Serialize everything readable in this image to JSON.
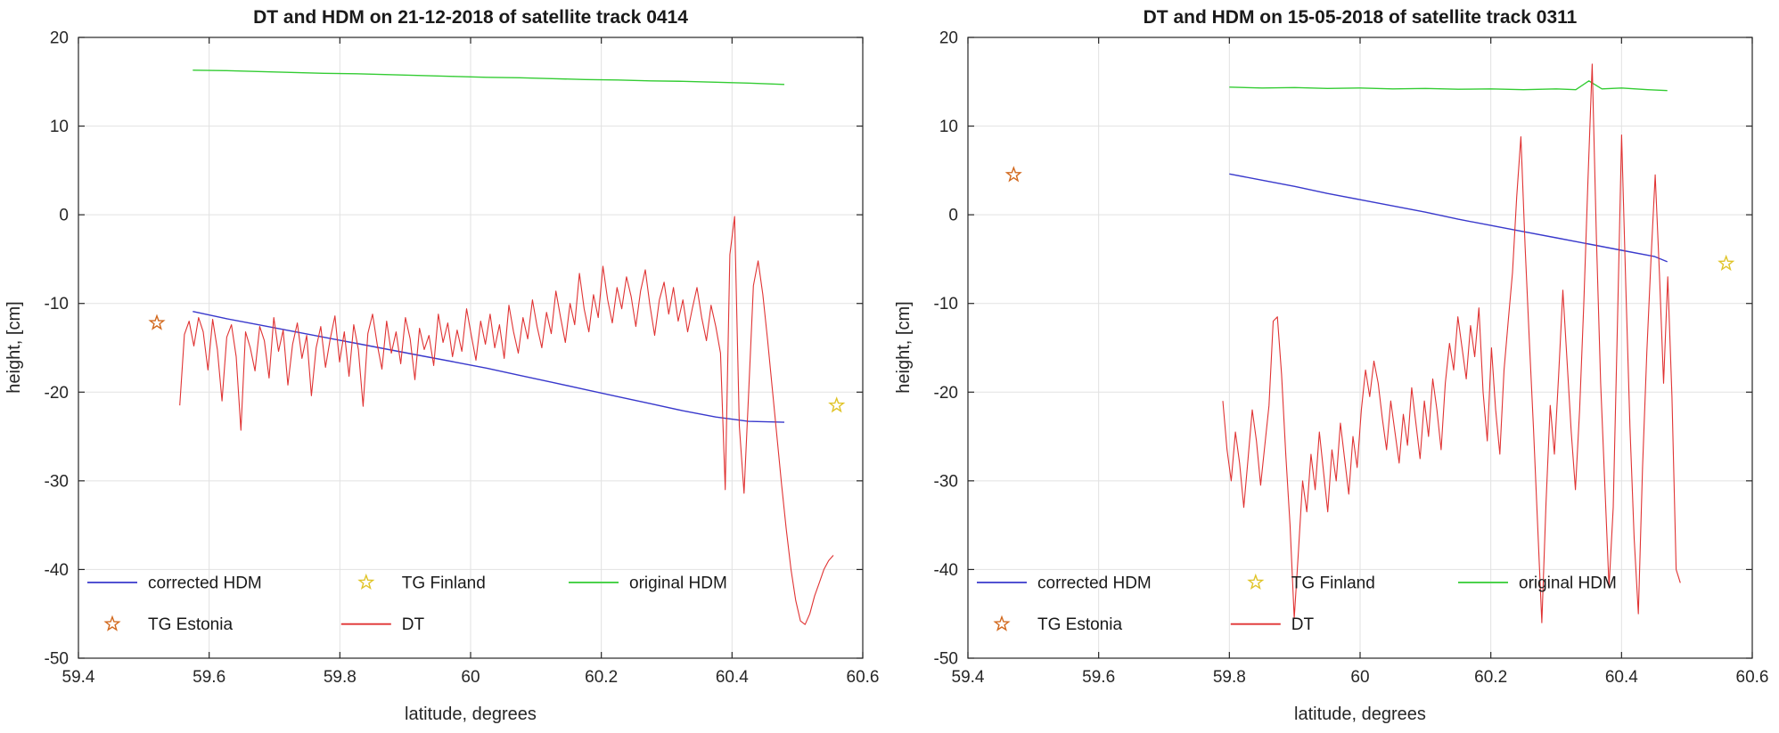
{
  "theme": {
    "background": "#ffffff",
    "axis_color": "#262626",
    "grid_color": "#e2e2e2",
    "text_color": "#262626"
  },
  "chart_data": [
    {
      "type": "line",
      "title": "DT and HDM on 21-12-2018 of satellite track 0414",
      "xlabel": "latitude, degrees",
      "ylabel": "height, [cm]",
      "xlim": [
        59.4,
        60.6
      ],
      "ylim": [
        -50,
        20
      ],
      "xticks": [
        "59.4",
        "59.6",
        "59.8",
        "60",
        "60.2",
        "60.4",
        "60.6"
      ],
      "xtick_values": [
        59.4,
        59.6,
        59.8,
        60,
        60.2,
        60.4,
        60.6
      ],
      "yticks": [
        "-50",
        "-40",
        "-30",
        "-20",
        "-10",
        "0",
        "10",
        "20"
      ],
      "ytick_values": [
        -50,
        -40,
        -30,
        -20,
        -10,
        0,
        10,
        20
      ],
      "grid": true,
      "legend": {
        "rows": 2,
        "cols": 3,
        "position": "inside-bottom-left",
        "items": [
          "corrected-hdm",
          "tg-estonia",
          "tg-finland",
          "dt",
          "original-hdm"
        ]
      },
      "series": [
        {
          "id": "original-hdm",
          "name": "original HDM",
          "kind": "line",
          "color": "#33cc33",
          "width": 1.4,
          "x": [
            59.575,
            59.625,
            59.675,
            59.725,
            59.775,
            59.825,
            59.875,
            59.925,
            59.975,
            60.025,
            60.075,
            60.125,
            60.175,
            60.225,
            60.275,
            60.325,
            60.375,
            60.425,
            60.48
          ],
          "y": [
            16.3,
            16.25,
            16.15,
            16.05,
            15.95,
            15.9,
            15.8,
            15.7,
            15.6,
            15.5,
            15.45,
            15.35,
            15.25,
            15.2,
            15.1,
            15.05,
            14.95,
            14.85,
            14.7
          ]
        },
        {
          "id": "corrected-hdm",
          "name": "corrected HDM",
          "kind": "line",
          "color": "#3939cc",
          "width": 1.4,
          "x": [
            59.575,
            59.625,
            59.675,
            59.725,
            59.775,
            59.825,
            59.875,
            59.925,
            59.975,
            60.025,
            60.075,
            60.125,
            60.175,
            60.225,
            60.275,
            60.325,
            60.375,
            60.425,
            60.48
          ],
          "y": [
            -10.9,
            -11.7,
            -12.4,
            -13.1,
            -13.8,
            -14.5,
            -15.2,
            -15.9,
            -16.6,
            -17.3,
            -18.1,
            -18.9,
            -19.7,
            -20.5,
            -21.3,
            -22.1,
            -22.8,
            -23.3,
            -23.4
          ]
        },
        {
          "id": "dt",
          "name": "DT",
          "kind": "line",
          "color": "#e03333",
          "width": 1.1,
          "x_start": 59.555,
          "x_end": 60.555,
          "y": [
            -21.5,
            -13.5,
            -12.0,
            -14.8,
            -11.6,
            -13.2,
            -17.5,
            -11.8,
            -15.2,
            -21.0,
            -13.8,
            -12.4,
            -16.0,
            -24.3,
            -13.2,
            -15.0,
            -17.6,
            -12.6,
            -14.2,
            -18.4,
            -11.6,
            -15.4,
            -13.0,
            -19.2,
            -14.6,
            -12.2,
            -16.2,
            -13.6,
            -20.4,
            -15.0,
            -12.6,
            -17.2,
            -14.0,
            -11.4,
            -16.6,
            -13.2,
            -18.2,
            -12.4,
            -15.2,
            -21.6,
            -13.4,
            -11.2,
            -14.6,
            -17.4,
            -12.0,
            -15.6,
            -13.2,
            -16.8,
            -11.6,
            -14.0,
            -18.6,
            -12.8,
            -15.2,
            -13.6,
            -17.0,
            -11.2,
            -14.4,
            -12.2,
            -16.0,
            -13.0,
            -15.4,
            -10.6,
            -13.6,
            -16.4,
            -12.0,
            -14.6,
            -11.2,
            -15.0,
            -12.4,
            -16.2,
            -10.2,
            -13.2,
            -15.6,
            -11.6,
            -14.0,
            -9.6,
            -12.6,
            -15.0,
            -11.0,
            -13.4,
            -8.6,
            -11.6,
            -14.4,
            -10.0,
            -12.4,
            -6.6,
            -10.6,
            -13.2,
            -9.0,
            -11.6,
            -5.8,
            -9.6,
            -12.2,
            -8.2,
            -10.6,
            -7.0,
            -9.2,
            -12.6,
            -8.6,
            -6.2,
            -10.2,
            -13.6,
            -9.6,
            -7.6,
            -11.2,
            -8.2,
            -12.0,
            -9.6,
            -13.2,
            -10.6,
            -8.2,
            -11.6,
            -14.2,
            -10.2,
            -12.6,
            -15.6,
            -31.0,
            -4.5,
            -0.2,
            -23.8,
            -31.4,
            -20.0,
            -8.0,
            -5.2,
            -9.0,
            -14.0,
            -19.5,
            -25.0,
            -30.5,
            -35.5,
            -40.0,
            -43.5,
            -45.8,
            -46.2,
            -45.0,
            -43.0,
            -41.5,
            -40.0,
            -39.0,
            -38.4
          ]
        },
        {
          "id": "tg-estonia",
          "name": "TG Estonia",
          "kind": "star",
          "color": "#d2691e",
          "points": [
            [
              59.52,
              -12.2
            ]
          ]
        },
        {
          "id": "tg-finland",
          "name": "TG Finland",
          "kind": "star",
          "color": "#e0c428",
          "points": [
            [
              60.56,
              -21.5
            ]
          ]
        }
      ]
    },
    {
      "type": "line",
      "title": "DT and HDM on 15-05-2018 of satellite track 0311",
      "xlabel": "latitude, degrees",
      "ylabel": "height, [cm]",
      "xlim": [
        59.4,
        60.6
      ],
      "ylim": [
        -50,
        20
      ],
      "xticks": [
        "59.4",
        "59.6",
        "59.8",
        "60",
        "60.2",
        "60.4",
        "60.6"
      ],
      "xtick_values": [
        59.4,
        59.6,
        59.8,
        60,
        60.2,
        60.4,
        60.6
      ],
      "yticks": [
        "-50",
        "-40",
        "-30",
        "-20",
        "-10",
        "0",
        "10",
        "20"
      ],
      "ytick_values": [
        -50,
        -40,
        -30,
        -20,
        -10,
        0,
        10,
        20
      ],
      "grid": true,
      "legend": {
        "rows": 2,
        "cols": 3,
        "position": "inside-bottom-left",
        "items": [
          "corrected-hdm",
          "tg-estonia",
          "tg-finland",
          "dt",
          "original-hdm"
        ]
      },
      "series": [
        {
          "id": "original-hdm",
          "name": "original HDM",
          "kind": "line",
          "color": "#33cc33",
          "width": 1.4,
          "x": [
            59.8,
            59.85,
            59.9,
            59.95,
            60.0,
            60.05,
            60.1,
            60.15,
            60.2,
            60.25,
            60.3,
            60.33,
            60.35,
            60.37,
            60.4,
            60.44,
            60.47
          ],
          "y": [
            14.4,
            14.3,
            14.35,
            14.25,
            14.3,
            14.2,
            14.25,
            14.15,
            14.2,
            14.1,
            14.2,
            14.1,
            15.1,
            14.2,
            14.3,
            14.1,
            14.0
          ]
        },
        {
          "id": "corrected-hdm",
          "name": "corrected HDM",
          "kind": "line",
          "color": "#3939cc",
          "width": 1.4,
          "x": [
            59.8,
            59.85,
            59.9,
            59.95,
            60.0,
            60.05,
            60.1,
            60.15,
            60.2,
            60.25,
            60.3,
            60.35,
            60.4,
            60.45,
            60.47
          ],
          "y": [
            4.6,
            3.9,
            3.2,
            2.4,
            1.7,
            1.0,
            0.3,
            -0.5,
            -1.2,
            -1.9,
            -2.6,
            -3.3,
            -4.0,
            -4.7,
            -5.3
          ]
        },
        {
          "id": "dt",
          "name": "DT",
          "kind": "line",
          "color": "#e03333",
          "width": 1.1,
          "x_start": 59.79,
          "x_end": 60.49,
          "y": [
            -21.0,
            -26.5,
            -30.0,
            -24.5,
            -28.0,
            -33.0,
            -27.5,
            -22.0,
            -25.5,
            -30.5,
            -26.0,
            -21.5,
            -12.0,
            -11.5,
            -18.0,
            -27.0,
            -35.0,
            -45.5,
            -38.0,
            -30.0,
            -33.5,
            -27.0,
            -31.0,
            -24.5,
            -29.0,
            -33.5,
            -26.5,
            -30.0,
            -23.5,
            -27.5,
            -31.5,
            -25.0,
            -28.5,
            -22.0,
            -17.5,
            -20.5,
            -16.5,
            -19.0,
            -23.0,
            -26.5,
            -21.0,
            -24.5,
            -28.0,
            -22.5,
            -26.0,
            -19.5,
            -23.5,
            -27.5,
            -21.0,
            -25.0,
            -18.5,
            -22.0,
            -26.5,
            -19.0,
            -14.5,
            -17.5,
            -11.5,
            -15.0,
            -18.5,
            -12.5,
            -16.0,
            -10.5,
            -20.0,
            -25.5,
            -15.0,
            -22.0,
            -27.0,
            -17.5,
            -12.0,
            -6.5,
            2.0,
            8.8,
            -3.5,
            -14.0,
            -24.0,
            -35.0,
            -46.0,
            -32.5,
            -21.5,
            -27.0,
            -18.0,
            -8.5,
            -16.5,
            -24.5,
            -31.0,
            -22.0,
            -10.0,
            4.0,
            17.0,
            -2.5,
            -19.0,
            -30.5,
            -42.0,
            -33.0,
            -12.5,
            9.0,
            -8.0,
            -24.0,
            -36.5,
            -45.0,
            -28.5,
            -15.5,
            -5.0,
            4.5,
            -6.5,
            -19.0,
            -7.0,
            -20.5,
            -40.0,
            -41.5
          ]
        },
        {
          "id": "tg-estonia",
          "name": "TG Estonia",
          "kind": "star",
          "color": "#d2691e",
          "points": [
            [
              59.47,
              4.5
            ]
          ]
        },
        {
          "id": "tg-finland",
          "name": "TG Finland",
          "kind": "star",
          "color": "#e0c428",
          "points": [
            [
              60.56,
              -5.5
            ]
          ]
        }
      ]
    }
  ]
}
